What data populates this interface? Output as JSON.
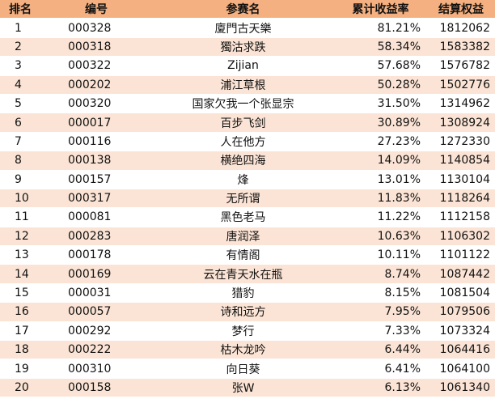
{
  "headers": {
    "rank": "排名",
    "id": "编号",
    "name": "参赛名",
    "return": "累计收益率",
    "equity": "结算权益"
  },
  "rows": [
    {
      "rank": "1",
      "id": "000328",
      "name": "廈門古天樂",
      "return": "81.21%",
      "equity": "1812062"
    },
    {
      "rank": "2",
      "id": "000318",
      "name": "獨沽求跌",
      "return": "58.34%",
      "equity": "1583382"
    },
    {
      "rank": "3",
      "id": "000322",
      "name": "Zijian",
      "return": "57.68%",
      "equity": "1576782"
    },
    {
      "rank": "4",
      "id": "000202",
      "name": "浦江草根",
      "return": "50.28%",
      "equity": "1502776"
    },
    {
      "rank": "5",
      "id": "000320",
      "name": "国家欠我一个张显宗",
      "return": "31.50%",
      "equity": "1314962"
    },
    {
      "rank": "6",
      "id": "000017",
      "name": "百步飞剑",
      "return": "30.89%",
      "equity": "1308924"
    },
    {
      "rank": "7",
      "id": "000116",
      "name": "人在他方",
      "return": "27.23%",
      "equity": "1272330"
    },
    {
      "rank": "8",
      "id": "000138",
      "name": "横绝四海",
      "return": "14.09%",
      "equity": "1140854"
    },
    {
      "rank": "9",
      "id": "000157",
      "name": "烽",
      "return": "13.01%",
      "equity": "1130104"
    },
    {
      "rank": "10",
      "id": "000317",
      "name": "无所谓",
      "return": "11.83%",
      "equity": "1118264"
    },
    {
      "rank": "11",
      "id": "000081",
      "name": "黑色老马",
      "return": "11.22%",
      "equity": "1112158"
    },
    {
      "rank": "12",
      "id": "000283",
      "name": "唐润泽",
      "return": "10.63%",
      "equity": "1106302"
    },
    {
      "rank": "13",
      "id": "000178",
      "name": "有情阁",
      "return": "10.11%",
      "equity": "1101122"
    },
    {
      "rank": "14",
      "id": "000169",
      "name": "云在青天水在瓶",
      "return": "8.74%",
      "equity": "1087442"
    },
    {
      "rank": "15",
      "id": "000031",
      "name": "猎豹",
      "return": "8.15%",
      "equity": "1081504"
    },
    {
      "rank": "16",
      "id": "000057",
      "name": "诗和远方",
      "return": "7.95%",
      "equity": "1079506"
    },
    {
      "rank": "17",
      "id": "000292",
      "name": "梦行",
      "return": "7.33%",
      "equity": "1073324"
    },
    {
      "rank": "18",
      "id": "000222",
      "name": "枯木龙吟",
      "return": "6.44%",
      "equity": "1064416"
    },
    {
      "rank": "19",
      "id": "000310",
      "name": "向日葵",
      "return": "6.41%",
      "equity": "1064100"
    },
    {
      "rank": "20",
      "id": "000158",
      "name": "张W",
      "return": "6.13%",
      "equity": "1061340"
    }
  ],
  "colors": {
    "header_bg": "#f4b081",
    "row_alt_bg": "#fbe4d5",
    "row_bg": "#ffffff"
  }
}
